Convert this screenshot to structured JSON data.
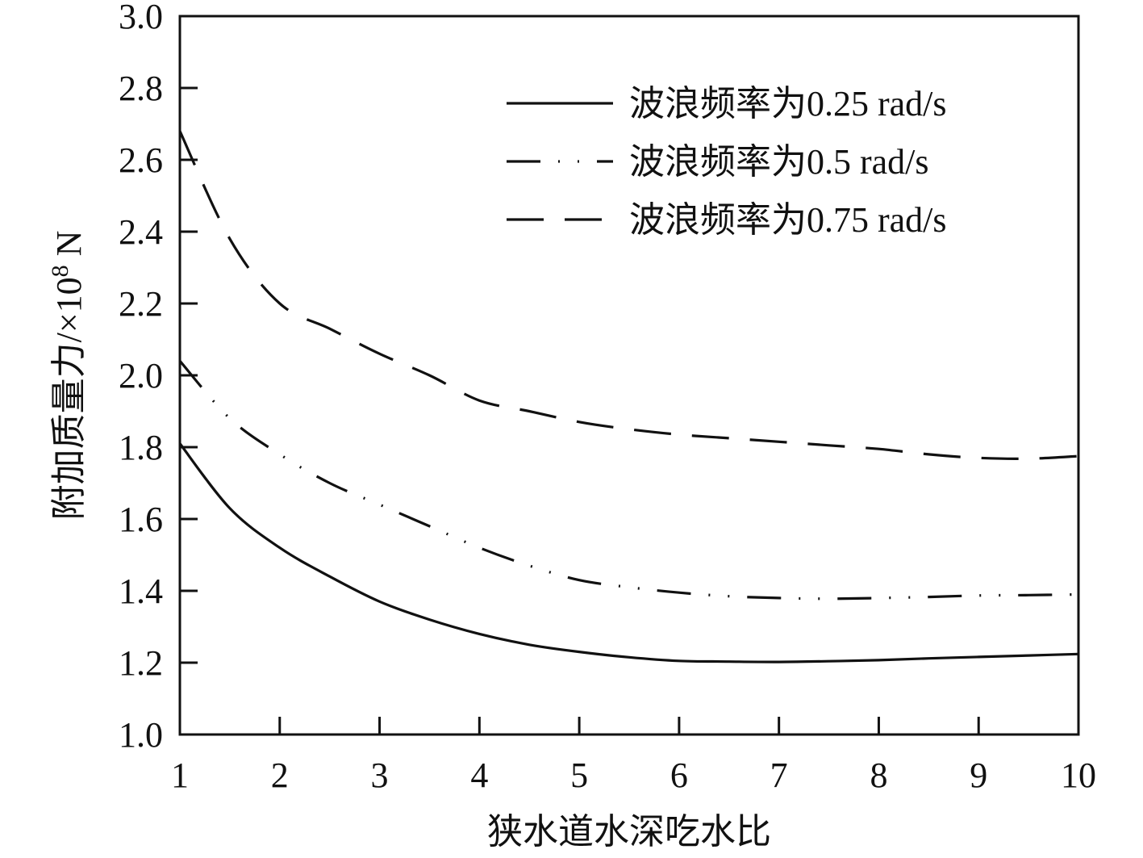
{
  "chart_data": {
    "type": "line",
    "title": "",
    "xlabel": "狭水道水深吃水比",
    "ylabel": "附加质量力/×10",
    "ylabel_exponent": "8",
    "ylabel_unit": " N",
    "xlim": [
      1,
      10
    ],
    "ylim": [
      1.0,
      3.0
    ],
    "x_ticks": [
      "1",
      "2",
      "3",
      "4",
      "5",
      "6",
      "7",
      "8",
      "9",
      "10"
    ],
    "y_ticks": [
      "1.0",
      "1.2",
      "1.4",
      "1.6",
      "1.8",
      "2.0",
      "2.2",
      "2.4",
      "2.6",
      "2.8",
      "3.0"
    ],
    "grid": false,
    "legend_position": "top-right",
    "x": [
      1,
      1.5,
      2,
      2.5,
      3,
      3.5,
      4,
      4.5,
      5,
      5.5,
      6,
      6.5,
      7,
      7.5,
      8,
      8.5,
      9,
      9.5,
      10
    ],
    "series": [
      {
        "name": "波浪频率为0.25 rad/s",
        "style": "solid",
        "values": [
          1.81,
          1.63,
          1.52,
          1.44,
          1.37,
          1.32,
          1.28,
          1.25,
          1.23,
          1.215,
          1.205,
          1.203,
          1.202,
          1.204,
          1.207,
          1.212,
          1.216,
          1.22,
          1.224
        ]
      },
      {
        "name": "波浪频率为0.5 rad/s",
        "style": "dash-dot-dot",
        "values": [
          2.04,
          1.88,
          1.78,
          1.7,
          1.64,
          1.58,
          1.52,
          1.47,
          1.43,
          1.41,
          1.395,
          1.385,
          1.38,
          1.378,
          1.38,
          1.383,
          1.387,
          1.388,
          1.39
        ]
      },
      {
        "name": "波浪频率为0.75 rad/s",
        "style": "dashed",
        "values": [
          2.68,
          2.38,
          2.2,
          2.13,
          2.06,
          2.0,
          1.93,
          1.9,
          1.87,
          1.85,
          1.835,
          1.825,
          1.815,
          1.805,
          1.795,
          1.78,
          1.77,
          1.768,
          1.775
        ]
      }
    ]
  }
}
